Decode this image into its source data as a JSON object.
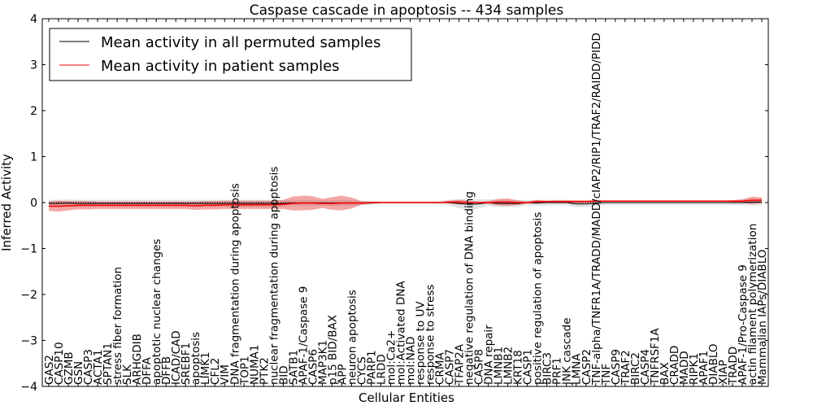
{
  "chart_data": {
    "type": "line",
    "title": "Caspase cascade in apoptosis -- 434 samples",
    "xlabel": "Cellular Entities",
    "ylabel": "Inferred Activity",
    "ylim": [
      -4,
      4
    ],
    "yticks": [
      -4,
      -3,
      -2,
      -1,
      0,
      1,
      2,
      3,
      4
    ],
    "grid": false,
    "legend_position": "top-left",
    "categories": [
      "GAS2",
      "CASP10",
      "GZMB",
      "GSN",
      "CASP3",
      "ACTA1",
      "SPTAN1",
      "stress fiber formation",
      "SLK",
      "ARHGDIB",
      "DFFA",
      "apoptotic nuclear changes",
      "DFFB",
      "ICAD/CAD",
      "SREBF1",
      "apoptosis",
      "LIMK1",
      "CFL2",
      "VIM",
      "DNA fragmentation during apoptosis",
      "TOP1",
      "NUMA1",
      "PTK2",
      "nuclear fragmentation during apoptosis",
      "BID",
      "SATB1",
      "APAF-1/Caspase 9",
      "CASP6",
      "MAP3K1",
      "p15 BID/BAX",
      "APP",
      "neuron apoptosis",
      "CYCS",
      "PARP1",
      "LRDD",
      "mol:Ca2+",
      "mol:Activated DNA",
      "mol:NAD",
      "response to UV",
      "response to stress",
      "CRMA",
      "CASP7",
      "TFAP2A",
      "negative regulation of DNA binding",
      "CASP8",
      "DNA repair",
      "LMNB1",
      "LMNB2",
      "KRT18",
      "CASP1",
      "positive regulation of apoptosis",
      "BIRC3",
      "PRF1",
      "JNK cascade",
      "LMNA",
      "CASP2",
      "TNF-alpha/TNFR1A/TRADD/MADD/cIAP2/RIP1/TRAF2/RAIDD/PIDD",
      "TNF",
      "CASP9",
      "TRAF2",
      "BIRC2",
      "CASP4",
      "TNFRSF1A",
      "BAX",
      "CRADD",
      "MADD",
      "RIPK1",
      "APAF1",
      "DIABLO",
      "XIAP",
      "TRADD",
      "APAF-1/Pro-Caspase 9",
      "actin filament polymerization",
      "Mammalian IAPs/DIABLO"
    ],
    "series": [
      {
        "name": "Mean activity in all permuted samples",
        "color": "#000000",
        "values": [
          -0.02,
          -0.02,
          -0.01,
          -0.02,
          -0.02,
          -0.02,
          -0.02,
          -0.02,
          -0.02,
          -0.02,
          -0.02,
          -0.02,
          -0.02,
          -0.02,
          -0.02,
          -0.02,
          -0.02,
          -0.02,
          -0.02,
          -0.02,
          -0.02,
          -0.02,
          -0.02,
          -0.02,
          -0.02,
          -0.01,
          -0.01,
          -0.01,
          -0.01,
          -0.01,
          -0.01,
          -0.01,
          -0.01,
          -0.01,
          0,
          0,
          0,
          0,
          0,
          0,
          0,
          0,
          -0.02,
          -0.04,
          -0.03,
          0,
          -0.02,
          -0.02,
          -0.02,
          0,
          -0.01,
          0,
          0,
          0,
          -0.03,
          -0.03,
          -0.01,
          0,
          0,
          0,
          0,
          0,
          0,
          0,
          0,
          0,
          0,
          0,
          0,
          0,
          0,
          0,
          0.01,
          0.01
        ],
        "band": [
          0.08,
          0.08,
          0.08,
          0.08,
          0.08,
          0.08,
          0.08,
          0.08,
          0.08,
          0.08,
          0.08,
          0.08,
          0.08,
          0.08,
          0.08,
          0.08,
          0.08,
          0.08,
          0.08,
          0.08,
          0.08,
          0.08,
          0.08,
          0.08,
          0.07,
          0.06,
          0.06,
          0.06,
          0.06,
          0.06,
          0.06,
          0.06,
          0.05,
          0.04,
          0.03,
          0.03,
          0.03,
          0.03,
          0.03,
          0.03,
          0.04,
          0.06,
          0.1,
          0.12,
          0.1,
          0.07,
          0.08,
          0.08,
          0.07,
          0.06,
          0.06,
          0.06,
          0.06,
          0.06,
          0.07,
          0.07,
          0.06,
          0.05,
          0.05,
          0.05,
          0.05,
          0.05,
          0.05,
          0.05,
          0.05,
          0.05,
          0.05,
          0.05,
          0.05,
          0.05,
          0.05,
          0.06,
          0.07,
          0.07
        ]
      },
      {
        "name": "Mean activity in patient samples",
        "color": "#ff0000",
        "values": [
          -0.08,
          -0.08,
          -0.07,
          -0.06,
          -0.06,
          -0.06,
          -0.06,
          -0.06,
          -0.06,
          -0.06,
          -0.06,
          -0.06,
          -0.06,
          -0.06,
          -0.06,
          -0.07,
          -0.06,
          -0.06,
          -0.05,
          -0.05,
          -0.05,
          -0.05,
          -0.05,
          -0.05,
          -0.04,
          -0.02,
          -0.01,
          -0.01,
          -0.02,
          -0.02,
          -0.01,
          -0.01,
          -0.01,
          0,
          0,
          0,
          0,
          0,
          0,
          0,
          0,
          0.01,
          0.01,
          0,
          0,
          0,
          0.01,
          0.01,
          0,
          0,
          0.02,
          0.02,
          0.02,
          0.02,
          0.02,
          0.02,
          0.03,
          0.03,
          0.03,
          0.03,
          0.03,
          0.03,
          0.03,
          0.03,
          0.03,
          0.03,
          0.03,
          0.03,
          0.03,
          0.03,
          0.03,
          0.03,
          0.05,
          0.05
        ],
        "band": [
          0.1,
          0.12,
          0.1,
          0.09,
          0.09,
          0.08,
          0.08,
          0.08,
          0.08,
          0.08,
          0.08,
          0.08,
          0.08,
          0.08,
          0.08,
          0.09,
          0.09,
          0.09,
          0.09,
          0.09,
          0.09,
          0.09,
          0.09,
          0.09,
          0.1,
          0.15,
          0.16,
          0.15,
          0.1,
          0.14,
          0.16,
          0.12,
          0.04,
          0.02,
          0.01,
          0.01,
          0.01,
          0.01,
          0.01,
          0.01,
          0.01,
          0.03,
          0.05,
          0.04,
          0.02,
          0.03,
          0.07,
          0.08,
          0.05,
          0.02,
          0.04,
          0.02,
          0.03,
          0.03,
          0.03,
          0.03,
          0.02,
          0.01,
          0.01,
          0.01,
          0.01,
          0.01,
          0.01,
          0.01,
          0.01,
          0.01,
          0.01,
          0.01,
          0.01,
          0.01,
          0.02,
          0.04,
          0.08,
          0.06
        ]
      }
    ]
  }
}
